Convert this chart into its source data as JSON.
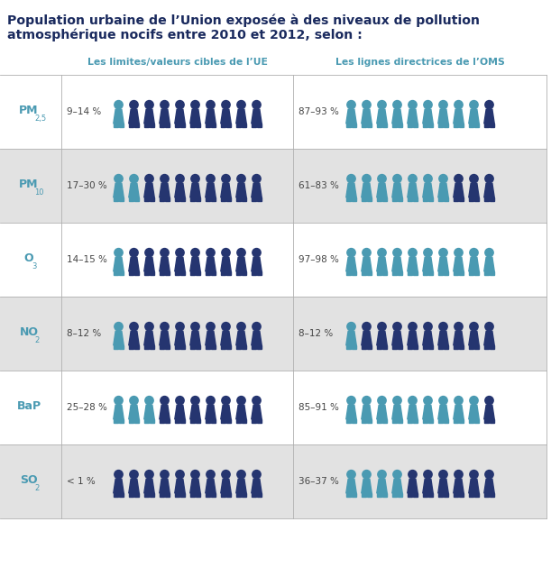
{
  "title_line1": "Population urbaine de l’Union exposée à des niveaux de pollution",
  "title_line2": "atmosphérique nocifs entre 2010 et 2012, selon :",
  "col1_header": "Les limites/valeurs cibles de l’UE",
  "col2_header": "Les lignes directrices de l’OMS",
  "rows": [
    {
      "pollutant": "PM",
      "sub": "2,5",
      "pct1": "9–14 %",
      "pct2": "87–93 %",
      "eu_exposed": 1,
      "eu_total": 10,
      "oms_exposed": 9,
      "oms_total": 10,
      "bg": "#ffffff"
    },
    {
      "pollutant": "PM",
      "sub": "10",
      "pct1": "17–30 %",
      "pct2": "61–83 %",
      "eu_exposed": 2,
      "eu_total": 10,
      "oms_exposed": 7,
      "oms_total": 10,
      "bg": "#e2e2e2"
    },
    {
      "pollutant": "O",
      "sub": "3",
      "pct1": "14–15 %",
      "pct2": "97–98 %",
      "eu_exposed": 1,
      "eu_total": 10,
      "oms_exposed": 10,
      "oms_total": 10,
      "bg": "#ffffff"
    },
    {
      "pollutant": "NO",
      "sub": "2",
      "pct1": "8–12 %",
      "pct2": "8–12 %",
      "eu_exposed": 1,
      "eu_total": 10,
      "oms_exposed": 1,
      "oms_total": 10,
      "bg": "#e2e2e2"
    },
    {
      "pollutant": "BaP",
      "sub": "",
      "pct1": "25–28 %",
      "pct2": "85–91 %",
      "eu_exposed": 3,
      "eu_total": 10,
      "oms_exposed": 9,
      "oms_total": 10,
      "bg": "#ffffff"
    },
    {
      "pollutant": "SO",
      "sub": "2",
      "pct1": "< 1 %",
      "pct2": "36–37 %",
      "eu_exposed": 0,
      "eu_total": 10,
      "oms_exposed": 4,
      "oms_total": 10,
      "bg": "#e2e2e2"
    }
  ],
  "color_exposed": "#4a9ab2",
  "color_dark": "#253570",
  "color_header": "#4a9ab2",
  "color_pollutant": "#4a9ab2",
  "color_title": "#1a2a5e",
  "n_icons": 10
}
